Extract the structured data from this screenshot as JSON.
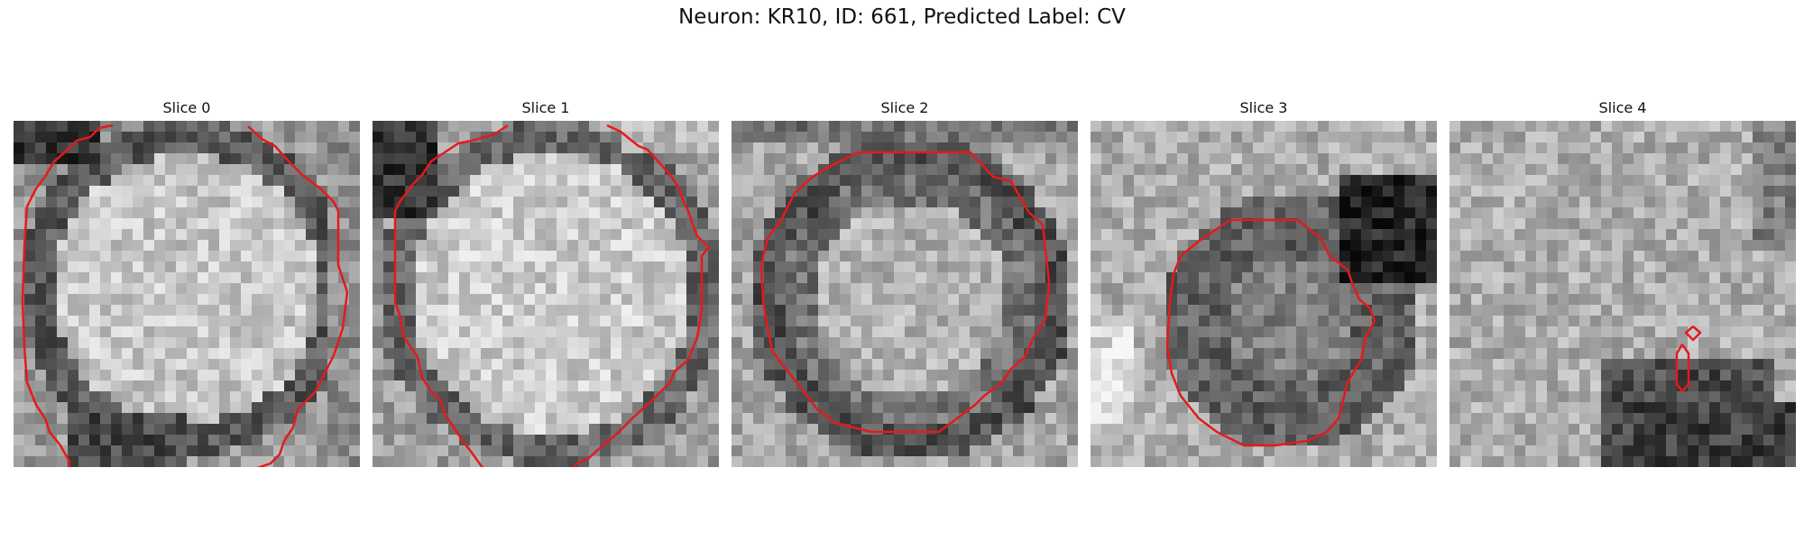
{
  "figure": {
    "title": "Neuron: KR10, ID: 661, Predicted Label: CV",
    "contour_color": "#e41a1c",
    "panels": [
      {
        "title": "Slice 0",
        "image": "noisy-grayscale-cell-slice"
      },
      {
        "title": "Slice 1",
        "image": "noisy-grayscale-cell-slice"
      },
      {
        "title": "Slice 2",
        "image": "noisy-grayscale-cell-slice"
      },
      {
        "title": "Slice 3",
        "image": "noisy-grayscale-cell-slice"
      },
      {
        "title": "Slice 4",
        "image": "noisy-grayscale-cell-slice"
      }
    ]
  }
}
